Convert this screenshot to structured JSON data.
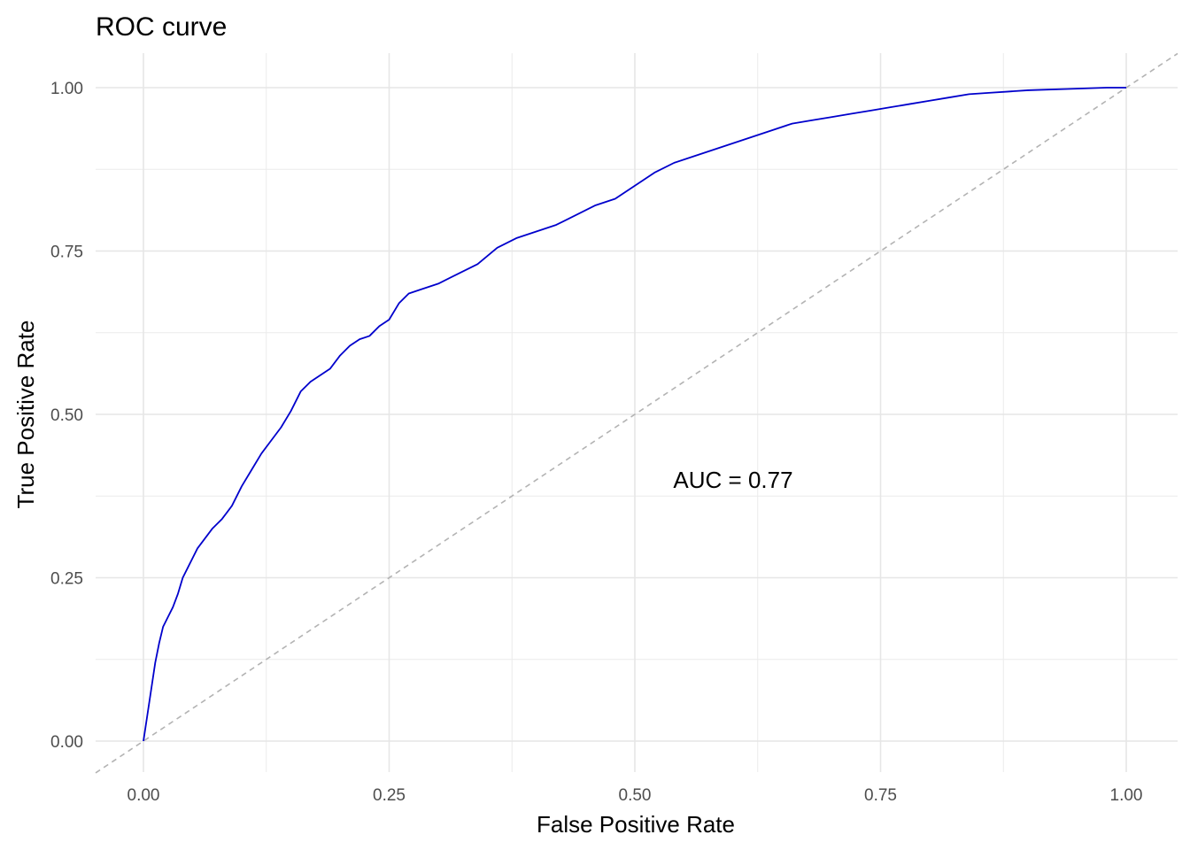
{
  "chart_data": {
    "type": "line",
    "title": "ROC curve",
    "xlabel": "False Positive Rate",
    "ylabel": "True Positive Rate",
    "xlim": [
      0,
      1
    ],
    "ylim": [
      0,
      1
    ],
    "x_ticks": [
      "0.00",
      "0.25",
      "0.50",
      "0.75",
      "1.00"
    ],
    "y_ticks": [
      "0.00",
      "0.25",
      "0.50",
      "0.75",
      "1.00"
    ],
    "grid": true,
    "annotation": {
      "text": "AUC = 0.77",
      "x": 0.6,
      "y": 0.4
    },
    "reference_line": {
      "style": "dashed",
      "color": "#b3b3b3",
      "intercept": 0,
      "slope": 1
    },
    "series": [
      {
        "color": "#0000cc",
        "x": [
          0.0,
          0.004,
          0.008,
          0.012,
          0.016,
          0.02,
          0.025,
          0.03,
          0.035,
          0.04,
          0.045,
          0.05,
          0.055,
          0.06,
          0.065,
          0.07,
          0.08,
          0.09,
          0.1,
          0.11,
          0.12,
          0.13,
          0.14,
          0.15,
          0.16,
          0.17,
          0.18,
          0.19,
          0.2,
          0.21,
          0.22,
          0.23,
          0.24,
          0.25,
          0.26,
          0.27,
          0.28,
          0.3,
          0.32,
          0.34,
          0.36,
          0.38,
          0.4,
          0.42,
          0.44,
          0.46,
          0.48,
          0.5,
          0.52,
          0.54,
          0.56,
          0.58,
          0.6,
          0.62,
          0.64,
          0.66,
          0.68,
          0.7,
          0.72,
          0.74,
          0.76,
          0.78,
          0.8,
          0.82,
          0.84,
          0.86,
          0.88,
          0.9,
          0.92,
          0.94,
          0.96,
          0.98,
          1.0
        ],
        "y": [
          0.0,
          0.04,
          0.08,
          0.12,
          0.15,
          0.175,
          0.19,
          0.205,
          0.225,
          0.25,
          0.265,
          0.28,
          0.295,
          0.305,
          0.315,
          0.325,
          0.34,
          0.36,
          0.39,
          0.415,
          0.44,
          0.46,
          0.48,
          0.505,
          0.535,
          0.55,
          0.56,
          0.57,
          0.59,
          0.605,
          0.615,
          0.62,
          0.635,
          0.645,
          0.67,
          0.685,
          0.69,
          0.7,
          0.715,
          0.73,
          0.755,
          0.77,
          0.78,
          0.79,
          0.805,
          0.82,
          0.83,
          0.85,
          0.87,
          0.885,
          0.895,
          0.905,
          0.915,
          0.925,
          0.935,
          0.945,
          0.95,
          0.955,
          0.96,
          0.965,
          0.97,
          0.975,
          0.98,
          0.985,
          0.99,
          0.992,
          0.994,
          0.996,
          0.997,
          0.998,
          0.999,
          1.0,
          1.0
        ]
      }
    ]
  }
}
